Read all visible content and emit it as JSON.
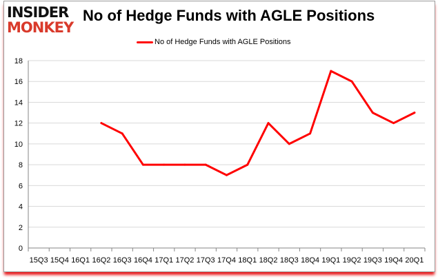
{
  "logo": {
    "line1": "INSIDER",
    "line2": "MONKEY"
  },
  "colors": {
    "series": "#ff0000",
    "grid": "#d9d9d9",
    "logo_red": "#d93a2b"
  },
  "chart_data": {
    "type": "line",
    "title": "No of Hedge Funds with AGLE Positions",
    "xlabel": "",
    "ylabel": "",
    "categories": [
      "15Q3",
      "15Q4",
      "16Q1",
      "16Q2",
      "16Q3",
      "16Q4",
      "17Q1",
      "17Q2",
      "17Q3",
      "17Q4",
      "18Q1",
      "18Q2",
      "18Q3",
      "18Q4",
      "19Q1",
      "19Q2",
      "19Q3",
      "19Q4",
      "20Q1"
    ],
    "series": [
      {
        "name": "No of Hedge Funds with AGLE Positions",
        "values": [
          null,
          null,
          null,
          12,
          11,
          8,
          8,
          8,
          8,
          7,
          8,
          12,
          10,
          11,
          17,
          16,
          13,
          12,
          13
        ]
      }
    ],
    "ylim": [
      0,
      18
    ],
    "yticks": [
      0,
      2,
      4,
      6,
      8,
      10,
      12,
      14,
      16,
      18
    ],
    "grid": true,
    "legend": "top-center"
  }
}
